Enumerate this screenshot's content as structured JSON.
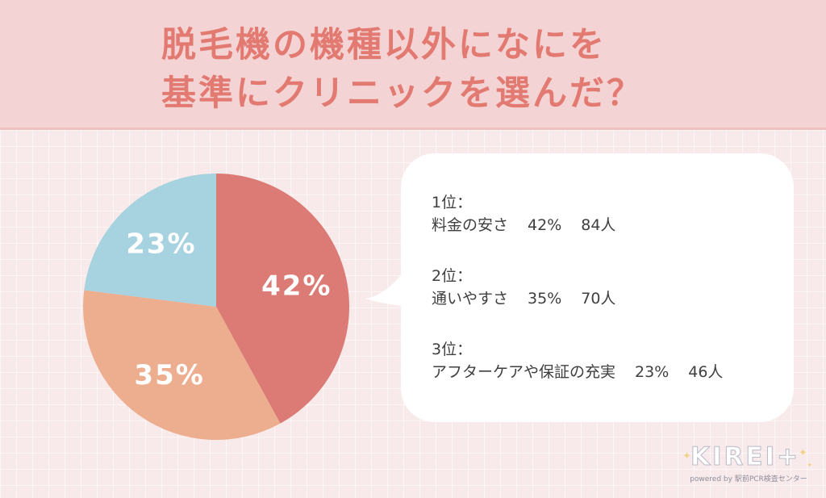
{
  "title_lines": [
    "脱毛機の機種以外になにを",
    "基準にクリニックを選んだ？"
  ],
  "chart_data": {
    "type": "pie",
    "slices": [
      {
        "label": "料金の安さ",
        "value": 42,
        "display": "42%",
        "color": "#dc7b75"
      },
      {
        "label": "通いやすさ",
        "value": 35,
        "display": "35%",
        "color": "#ecae8e"
      },
      {
        "label": "アフターケアや保証の充実",
        "value": 23,
        "display": "23%",
        "color": "#a7d2df"
      }
    ]
  },
  "ranking": [
    {
      "rank": "1位：",
      "item": "料金の安さ",
      "percent": "42%",
      "count": "84人"
    },
    {
      "rank": "2位：",
      "item": "通いやすさ",
      "percent": "35%",
      "count": "70人"
    },
    {
      "rank": "3位：",
      "item": "アフターケアや保証の充実",
      "percent": "23%",
      "count": "46人"
    }
  ],
  "logo": {
    "name": "KIREI+",
    "tagline": "powered by 駅前PCR検査センター"
  }
}
